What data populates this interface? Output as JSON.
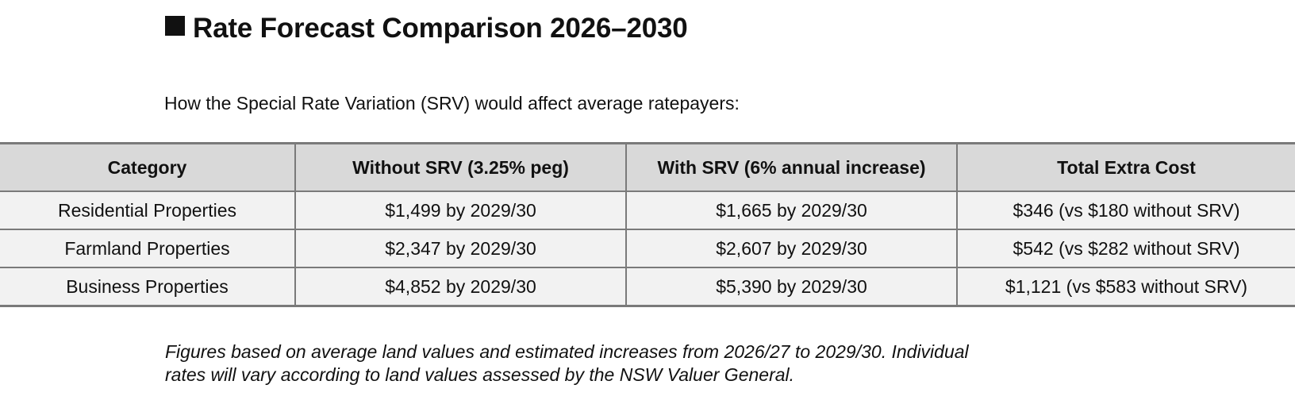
{
  "heading": {
    "title": "Rate Forecast Comparison 2026–2030"
  },
  "intro": "How the Special Rate Variation (SRV) would affect average ratepayers:",
  "table": {
    "headers": [
      "Category",
      "Without SRV (3.25% peg)",
      "With SRV (6% annual increase)",
      "Total Extra Cost"
    ],
    "rows": [
      [
        "Residential Properties",
        "$1,499 by 2029/30",
        "$1,665 by 2029/30",
        "$346 (vs $180 without SRV)"
      ],
      [
        "Farmland Properties",
        "$2,347 by 2029/30",
        "$2,607 by 2029/30",
        "$542 (vs $282 without SRV)"
      ],
      [
        "Business Properties",
        "$4,852 by 2029/30",
        "$5,390 by 2029/30",
        "$1,121 (vs $583 without SRV)"
      ]
    ]
  },
  "note": {
    "line1": "Figures based on average land values and estimated increases from 2026/27 to 2029/30. Individual",
    "line2": "rates will vary according to land values assessed by the NSW Valuer General."
  },
  "colors": {
    "header_bg": "#d9d9d9",
    "row_bg": "#f2f2f2",
    "border": "#7a7a7a",
    "text": "#111111"
  },
  "icons": {
    "heading_marker": "black-square-icon"
  }
}
